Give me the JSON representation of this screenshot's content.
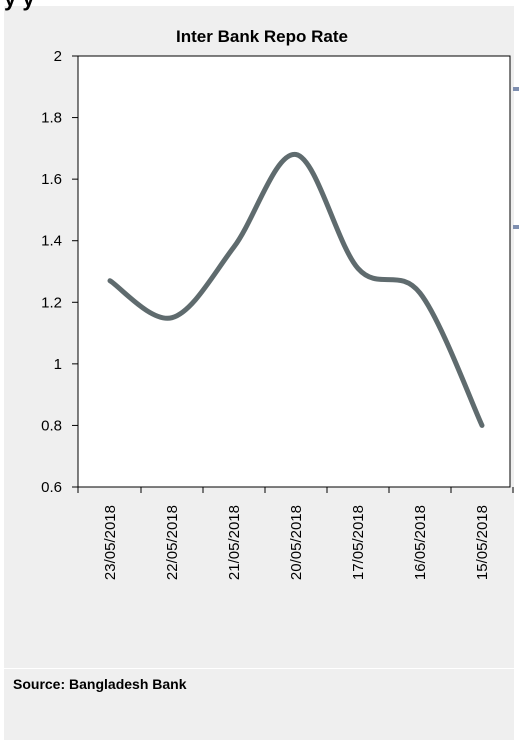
{
  "header": {
    "cut_text": "y  y"
  },
  "source_note": "Source: Bangladesh Bank",
  "colors": {
    "line": "#5f6b6e",
    "panel": "#efefef",
    "plot_bg": "#ffffff"
  },
  "chart_data": {
    "type": "line",
    "title": "Inter Bank Repo Rate",
    "xlabel": "",
    "ylabel": "",
    "categories": [
      "23/05/2018",
      "22/05/2018",
      "21/05/2018",
      "20/05/2018",
      "17/05/2018",
      "16/05/2018",
      "15/05/2018"
    ],
    "series": [
      {
        "values": [
          1.27,
          1.15,
          1.38,
          1.68,
          1.31,
          1.23,
          0.8
        ]
      }
    ],
    "ylim": [
      0.6,
      2.0
    ],
    "yticks": [
      "0.6",
      "0.8",
      "1",
      "1.2",
      "1.4",
      "1.6",
      "1.8",
      "2"
    ],
    "grid": false,
    "smooth": true,
    "legend": "none"
  }
}
